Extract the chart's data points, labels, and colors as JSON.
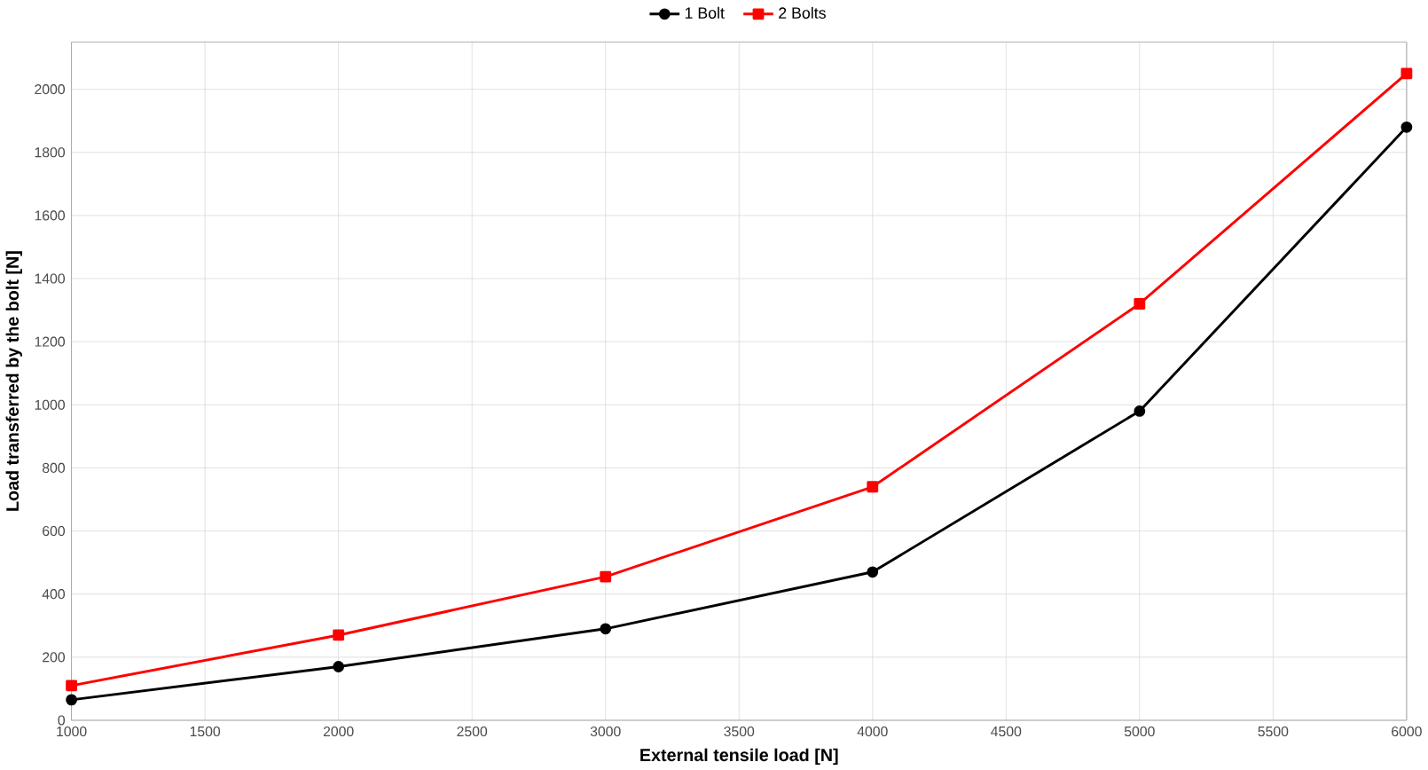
{
  "chart_data": {
    "type": "line",
    "xlabel": "External tensile load [N]",
    "ylabel": "Load transferred by the bolt [N]",
    "x": [
      1000,
      2000,
      3000,
      4000,
      5000,
      6000
    ],
    "series": [
      {
        "name": "1 Bolt",
        "color": "#000000",
        "marker": "circle",
        "values": [
          65,
          170,
          290,
          470,
          980,
          1880
        ]
      },
      {
        "name": "2 Bolts",
        "color": "#ff0000",
        "marker": "square",
        "values": [
          110,
          270,
          455,
          740,
          1320,
          2050
        ]
      }
    ],
    "xlim": [
      1000,
      6000
    ],
    "ylim": [
      0,
      2150
    ],
    "xticks": [
      1000,
      1500,
      2000,
      2500,
      3000,
      3500,
      4000,
      4500,
      5000,
      5500,
      6000
    ],
    "yticks": [
      0,
      200,
      400,
      600,
      800,
      1000,
      1200,
      1400,
      1600,
      1800,
      2000
    ],
    "grid": true,
    "legend": "top",
    "line_style": "solid"
  }
}
